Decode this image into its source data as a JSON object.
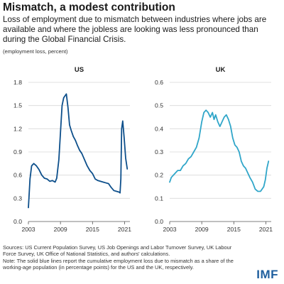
{
  "title": "Mismatch, a modest contribution",
  "subtitle": "Loss of employment due to mismatch between industries where jobs are available and where the jobless are looking was less pronounced than during the Global Financial Crisis.",
  "unit_note": "(employment loss, percent)",
  "sources": "Sources: US Current Population Survey, US Job Openings and Labor Turnover Survey, UK Labour Force Survey, UK Office of National Statistics, and authors' calculations.",
  "note": "Note: The solid blue lines report the cumulative employment loss due to mismatch as a share of the working-age population (in percentage points) for the US and the UK, respectively.",
  "logo": "IMF",
  "colors": {
    "us": "#0d4f8b",
    "uk": "#30a6c9",
    "grid": "#d9d9d9"
  },
  "chart_data": [
    {
      "type": "line",
      "title": "US",
      "xlim": [
        2003,
        2022
      ],
      "ylim": [
        0,
        1.8
      ],
      "xticks": [
        2003,
        2009,
        2015,
        2021
      ],
      "xtick_labels": [
        "2003",
        "2009",
        "2015",
        "2021"
      ],
      "yticks": [
        0,
        0.3,
        0.6,
        0.9,
        1.2,
        1.5,
        1.8
      ],
      "ytick_labels": [
        "0.0",
        "0.3",
        "0.6",
        "0.9",
        "1.2",
        "1.5",
        "1.8"
      ],
      "grid": true,
      "x": [
        2003.0,
        2003.3,
        2003.6,
        2004.0,
        2004.5,
        2005.0,
        2005.5,
        2006.0,
        2006.5,
        2007.0,
        2007.5,
        2008.0,
        2008.3,
        2008.7,
        2009.0,
        2009.3,
        2009.6,
        2009.9,
        2010.1,
        2010.4,
        2010.7,
        2011.0,
        2011.4,
        2011.8,
        2012.2,
        2012.6,
        2013.0,
        2013.5,
        2014.0,
        2014.5,
        2015.0,
        2015.5,
        2016.0,
        2016.5,
        2017.0,
        2017.5,
        2018.0,
        2018.5,
        2019.0,
        2019.5,
        2020.0,
        2020.15,
        2020.3,
        2020.45,
        2020.65,
        2020.9,
        2021.2,
        2021.5
      ],
      "series": [
        {
          "values": [
            0.18,
            0.55,
            0.72,
            0.75,
            0.72,
            0.67,
            0.6,
            0.56,
            0.55,
            0.52,
            0.53,
            0.51,
            0.56,
            0.8,
            1.15,
            1.5,
            1.6,
            1.63,
            1.65,
            1.48,
            1.25,
            1.18,
            1.1,
            1.05,
            0.98,
            0.92,
            0.88,
            0.8,
            0.72,
            0.66,
            0.62,
            0.55,
            0.53,
            0.52,
            0.51,
            0.5,
            0.49,
            0.44,
            0.4,
            0.39,
            0.38,
            0.37,
            0.55,
            1.2,
            1.3,
            1.1,
            0.82,
            0.68
          ]
        }
      ]
    },
    {
      "type": "line",
      "title": "UK",
      "xlim": [
        2003,
        2022
      ],
      "ylim": [
        0,
        0.6
      ],
      "xticks": [
        2003,
        2009,
        2015,
        2021
      ],
      "xtick_labels": [
        "2003",
        "2009",
        "2015",
        "2021"
      ],
      "yticks": [
        0,
        0.1,
        0.2,
        0.3,
        0.4,
        0.5,
        0.6
      ],
      "ytick_labels": [
        "0.0",
        "0.1",
        "0.2",
        "0.3",
        "0.4",
        "0.5",
        "0.6"
      ],
      "grid": true,
      "x": [
        2003.0,
        2003.3,
        2003.7,
        2004.1,
        2004.5,
        2005.0,
        2005.5,
        2006.0,
        2006.5,
        2007.0,
        2007.5,
        2008.0,
        2008.5,
        2009.0,
        2009.4,
        2009.8,
        2010.2,
        2010.6,
        2011.0,
        2011.3,
        2011.6,
        2012.0,
        2012.4,
        2012.8,
        2013.2,
        2013.6,
        2014.0,
        2014.4,
        2014.8,
        2015.2,
        2015.6,
        2016.0,
        2016.4,
        2016.8,
        2017.2,
        2017.6,
        2018.0,
        2018.5,
        2019.0,
        2019.5,
        2020.0,
        2020.3,
        2020.6,
        2020.9,
        2021.2,
        2021.5
      ],
      "series": [
        {
          "values": [
            0.17,
            0.19,
            0.2,
            0.21,
            0.22,
            0.22,
            0.24,
            0.25,
            0.27,
            0.28,
            0.3,
            0.32,
            0.36,
            0.43,
            0.47,
            0.48,
            0.47,
            0.45,
            0.47,
            0.44,
            0.46,
            0.43,
            0.41,
            0.43,
            0.45,
            0.46,
            0.44,
            0.41,
            0.36,
            0.33,
            0.32,
            0.3,
            0.26,
            0.24,
            0.23,
            0.21,
            0.19,
            0.17,
            0.14,
            0.13,
            0.13,
            0.14,
            0.15,
            0.18,
            0.23,
            0.26
          ]
        }
      ]
    }
  ]
}
